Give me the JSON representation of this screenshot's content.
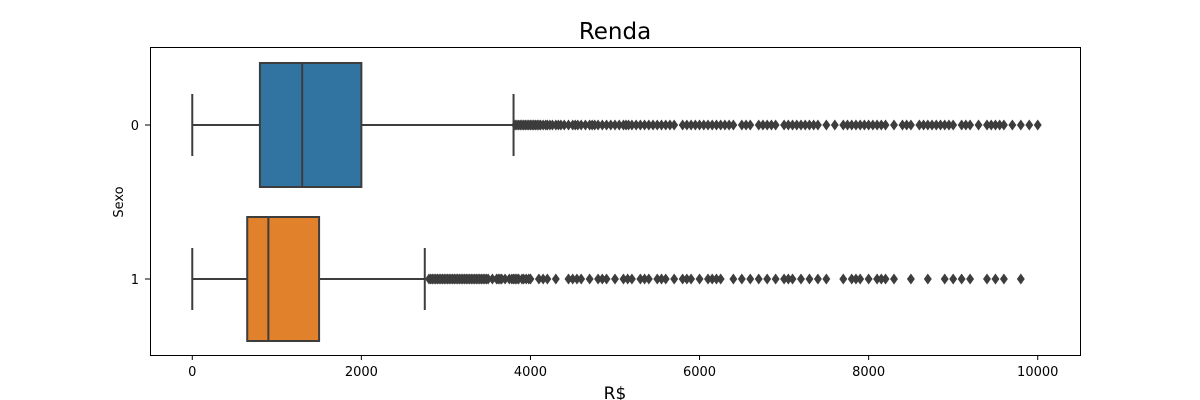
{
  "chart_data": {
    "type": "boxplot",
    "title": "Renda",
    "xlabel": "R$",
    "ylabel": "Sexo",
    "orientation": "horizontal",
    "xlim": [
      -500,
      10500
    ],
    "xticks": [
      0,
      2000,
      4000,
      6000,
      8000,
      10000
    ],
    "categories": [
      "0",
      "1"
    ],
    "grid": false,
    "series": [
      {
        "category": "0",
        "color": "#3274a1",
        "whisker_low": 0,
        "q1": 800,
        "median": 1300,
        "q3": 2000,
        "whisker_high": 3800,
        "outliers": [
          3820,
          3840,
          3860,
          3880,
          3900,
          3920,
          3940,
          3960,
          3980,
          4000,
          4020,
          4040,
          4060,
          4080,
          4100,
          4120,
          4150,
          4180,
          4200,
          4230,
          4260,
          4300,
          4330,
          4360,
          4400,
          4450,
          4500,
          4530,
          4560,
          4600,
          4650,
          4700,
          4730,
          4760,
          4800,
          4850,
          4900,
          4950,
          5000,
          5050,
          5100,
          5130,
          5160,
          5200,
          5250,
          5300,
          5350,
          5400,
          5450,
          5500,
          5550,
          5600,
          5650,
          5700,
          5800,
          5850,
          5900,
          5950,
          6000,
          6050,
          6100,
          6150,
          6200,
          6250,
          6300,
          6350,
          6400,
          6500,
          6550,
          6600,
          6700,
          6750,
          6800,
          6850,
          6900,
          7000,
          7050,
          7100,
          7150,
          7200,
          7250,
          7300,
          7350,
          7400,
          7500,
          7600,
          7700,
          7750,
          7800,
          7850,
          7900,
          7950,
          8000,
          8050,
          8100,
          8150,
          8200,
          8300,
          8400,
          8450,
          8500,
          8600,
          8650,
          8700,
          8750,
          8800,
          8850,
          8900,
          8950,
          9000,
          9100,
          9150,
          9200,
          9300,
          9400,
          9450,
          9500,
          9550,
          9600,
          9700,
          9800,
          9900,
          10000
        ]
      },
      {
        "category": "1",
        "color": "#e1812c",
        "whisker_low": 0,
        "q1": 650,
        "median": 900,
        "q3": 1500,
        "whisker_high": 2750,
        "outliers": [
          2800,
          2820,
          2840,
          2860,
          2880,
          2900,
          2920,
          2940,
          2960,
          2980,
          3000,
          3020,
          3040,
          3060,
          3080,
          3100,
          3120,
          3140,
          3160,
          3180,
          3200,
          3220,
          3240,
          3260,
          3280,
          3300,
          3320,
          3340,
          3360,
          3380,
          3400,
          3420,
          3440,
          3460,
          3480,
          3500,
          3550,
          3600,
          3620,
          3640,
          3660,
          3700,
          3750,
          3780,
          3800,
          3820,
          3840,
          3860,
          3900,
          3920,
          3950,
          3980,
          4000,
          4100,
          4150,
          4200,
          4300,
          4450,
          4500,
          4550,
          4600,
          4700,
          4800,
          4850,
          4900,
          5000,
          5100,
          5150,
          5200,
          5300,
          5350,
          5400,
          5500,
          5550,
          5600,
          5700,
          5800,
          5850,
          5900,
          6000,
          6100,
          6150,
          6200,
          6250,
          6400,
          6500,
          6600,
          6700,
          6800,
          6900,
          7000,
          7050,
          7100,
          7200,
          7300,
          7400,
          7500,
          7700,
          7800,
          7850,
          7900,
          8000,
          8100,
          8150,
          8200,
          8300,
          8500,
          8700,
          8900,
          9000,
          9100,
          9200,
          9400,
          9500,
          9600,
          9800
        ]
      }
    ]
  }
}
